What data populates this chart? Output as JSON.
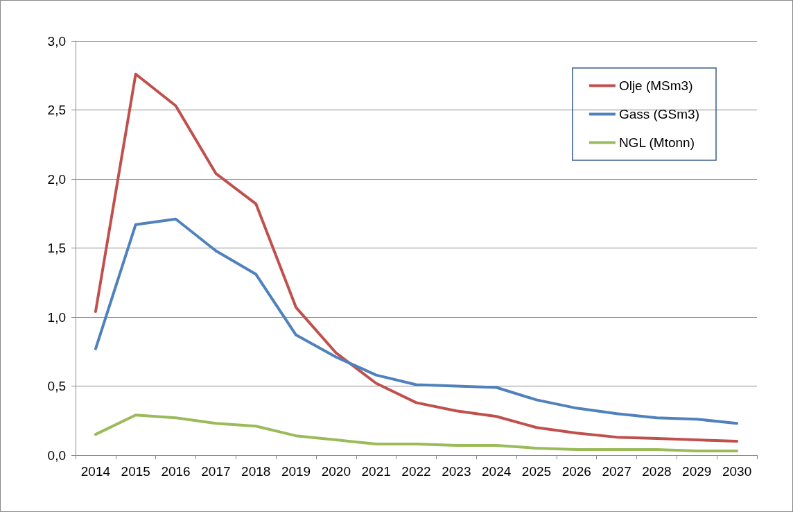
{
  "chart_data": {
    "type": "line",
    "categories": [
      "2014",
      "2015",
      "2016",
      "2017",
      "2018",
      "2019",
      "2020",
      "2021",
      "2022",
      "2023",
      "2024",
      "2025",
      "2026",
      "2027",
      "2028",
      "2029",
      "2030"
    ],
    "series": [
      {
        "name": "Olje (MSm3)",
        "color": "#c0504d",
        "values": [
          1.04,
          2.76,
          2.53,
          2.04,
          1.82,
          1.07,
          0.74,
          0.52,
          0.38,
          0.32,
          0.28,
          0.2,
          0.16,
          0.13,
          0.12,
          0.11,
          0.1
        ]
      },
      {
        "name": "Gass (GSm3)",
        "color": "#4f81bd",
        "values": [
          0.77,
          1.67,
          1.71,
          1.48,
          1.31,
          0.87,
          0.71,
          0.58,
          0.51,
          0.5,
          0.49,
          0.4,
          0.34,
          0.3,
          0.27,
          0.26,
          0.23
        ]
      },
      {
        "name": "NGL (Mtonn)",
        "color": "#9bbb59",
        "values": [
          0.15,
          0.29,
          0.27,
          0.23,
          0.21,
          0.14,
          0.11,
          0.08,
          0.08,
          0.07,
          0.07,
          0.05,
          0.04,
          0.04,
          0.04,
          0.03,
          0.03
        ]
      }
    ],
    "ylim": [
      0,
      3
    ],
    "yticks": [
      {
        "value": 0,
        "label": "0,0"
      },
      {
        "value": 0.5,
        "label": "0,5"
      },
      {
        "value": 1,
        "label": "1,0"
      },
      {
        "value": 1.5,
        "label": "1,5"
      },
      {
        "value": 2,
        "label": "2,0"
      },
      {
        "value": 2.5,
        "label": "2,5"
      },
      {
        "value": 3,
        "label": "3,0"
      }
    ],
    "grid": "y",
    "legend": "top right",
    "marker": "none",
    "line_style": "solid"
  }
}
